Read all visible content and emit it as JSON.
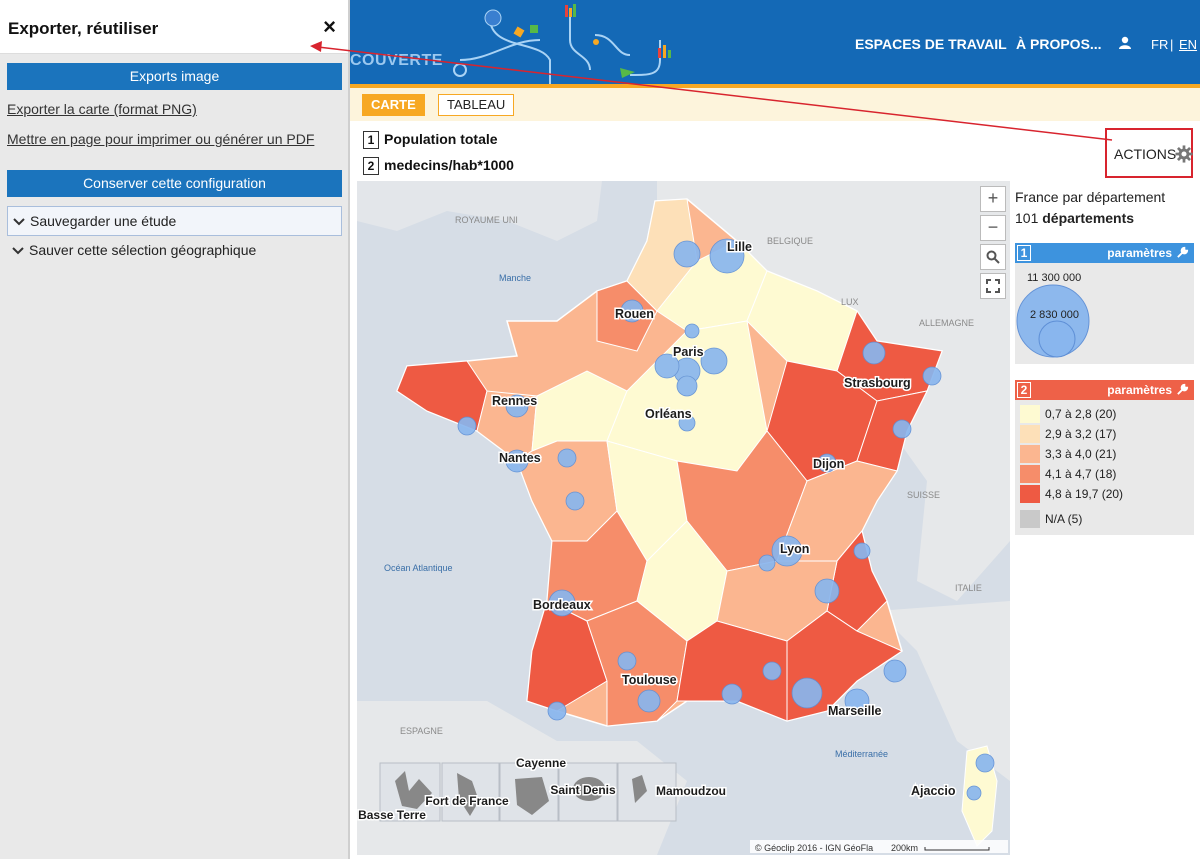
{
  "panel": {
    "title": "Exporter, réutiliser",
    "close_icon": "×",
    "exports_header": "Exports image",
    "export_png": "Exporter la carte (format PNG)",
    "export_pdf": "Mettre en page pour imprimer ou générer un PDF",
    "config_header": "Conserver cette configuration",
    "save_study": "Sauvegarder une étude",
    "save_selection": "Sauver cette sélection géographique"
  },
  "header": {
    "brand": "COUVERTE",
    "nav": [
      "ESPACES DE TRAVAIL",
      "À PROPOS..."
    ],
    "lang_fr": "FR",
    "lang_sep": "|",
    "lang_en": "EN"
  },
  "tabs": {
    "map": "CARTE",
    "table": "TABLEAU"
  },
  "indicators": [
    {
      "num": "1",
      "label": "Population totale"
    },
    {
      "num": "2",
      "label": "medecins/hab*1000"
    }
  ],
  "actions": {
    "label": "ACTIONS"
  },
  "map": {
    "cities": [
      "Lille",
      "Rouen",
      "Paris",
      "Strasbourg",
      "Rennes",
      "Orléans",
      "Nantes",
      "Dijon",
      "Lyon",
      "Bordeaux",
      "Toulouse",
      "Marseille",
      "Ajaccio"
    ],
    "countries": [
      "ROYAUME UNI",
      "BELGIQUE",
      "LUX",
      "ALLEMAGNE",
      "SUISSE",
      "ITALIE",
      "ESPAGNE"
    ],
    "seas": [
      "Manche",
      "Océan Atlantique",
      "Méditerranée"
    ],
    "overseas": [
      "Basse Terre",
      "Fort de France",
      "Cayenne",
      "Saint Denis",
      "Mamoudzou"
    ],
    "attribution": "© Géoclip 2016 - IGN GéoFla",
    "scale": "200km",
    "zoom_in": "+",
    "zoom_out": "−"
  },
  "legend": {
    "scope": "France par département",
    "count_num": "101",
    "count_label": "départements",
    "layer1": {
      "num": "1",
      "params": "paramètres",
      "max_label": "11 300 000",
      "mid_label": "2 830 000"
    },
    "layer2": {
      "num": "2",
      "params": "paramètres",
      "classes": [
        {
          "label": "0,7 à 2,8 (20)",
          "color": "#fefad2"
        },
        {
          "label": "2,9 à 3,2 (17)",
          "color": "#fde0b8"
        },
        {
          "label": "3,3 à 4,0 (21)",
          "color": "#fbb690"
        },
        {
          "label": "4,1 à 4,7 (18)",
          "color": "#f68d6a"
        },
        {
          "label": "4,8 à 19,7 (20)",
          "color": "#ee5a43"
        },
        {
          "label": "N/A (5)",
          "color": "#c9c9c9"
        }
      ]
    }
  },
  "colors": {
    "accent": "#1469b6",
    "orange": "#f7a823",
    "highlight": "#d8242e"
  }
}
